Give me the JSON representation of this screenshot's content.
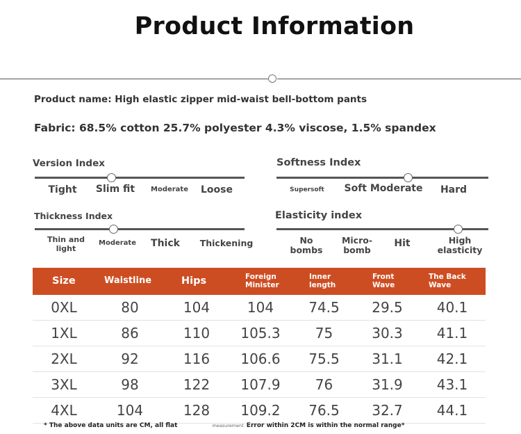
{
  "title": "Product Information",
  "product_name": "Product name: High elastic zipper mid-waist bell-bottom pants",
  "fabric": "Fabric: 68.5% cotton 25.7% polyester 4.3% viscose, 1.5% spandex",
  "indices": {
    "version": {
      "title": "Version Index",
      "options": [
        "Tight",
        "Slim fit",
        "Moderate",
        "Loose"
      ],
      "selected": "Slim fit"
    },
    "softness": {
      "title": "Softness Index",
      "options": [
        "Supersoft",
        "Soft Moderate",
        "Hard"
      ],
      "selected": "Soft Moderate"
    },
    "thickness": {
      "title": "Thickness Index",
      "options": [
        "Thin and light",
        "Moderate",
        "Thick",
        "Thickening"
      ],
      "selected": "Moderate"
    },
    "elasticity": {
      "title": "Elasticity index",
      "options": [
        "No bombs",
        "Micro-bomb",
        "Hit",
        "High elasticity"
      ],
      "selected": "High elasticity"
    }
  },
  "size_table": {
    "headers": [
      "Size",
      "Waistline",
      "Hips",
      "Foreign Minister",
      "Inner length",
      "Front Wave",
      "The Back Wave"
    ],
    "rows": [
      [
        "0XL",
        "80",
        "104",
        "104",
        "74.5",
        "29.5",
        "40.1"
      ],
      [
        "1XL",
        "86",
        "110",
        "105.3",
        "75",
        "30.3",
        "41.1"
      ],
      [
        "2XL",
        "92",
        "116",
        "106.6",
        "75.5",
        "31.1",
        "42.1"
      ],
      [
        "3XL",
        "98",
        "122",
        "107.9",
        "76",
        "31.9",
        "43.1"
      ],
      [
        "4XL",
        "104",
        "128",
        "109.2",
        "76.5",
        "32.7",
        "44.1"
      ]
    ]
  },
  "footnote": {
    "part1": "* The above data units are CM, all flat",
    "part2": "measurement",
    "part3": "Error within 2CM is within the normal range*"
  }
}
